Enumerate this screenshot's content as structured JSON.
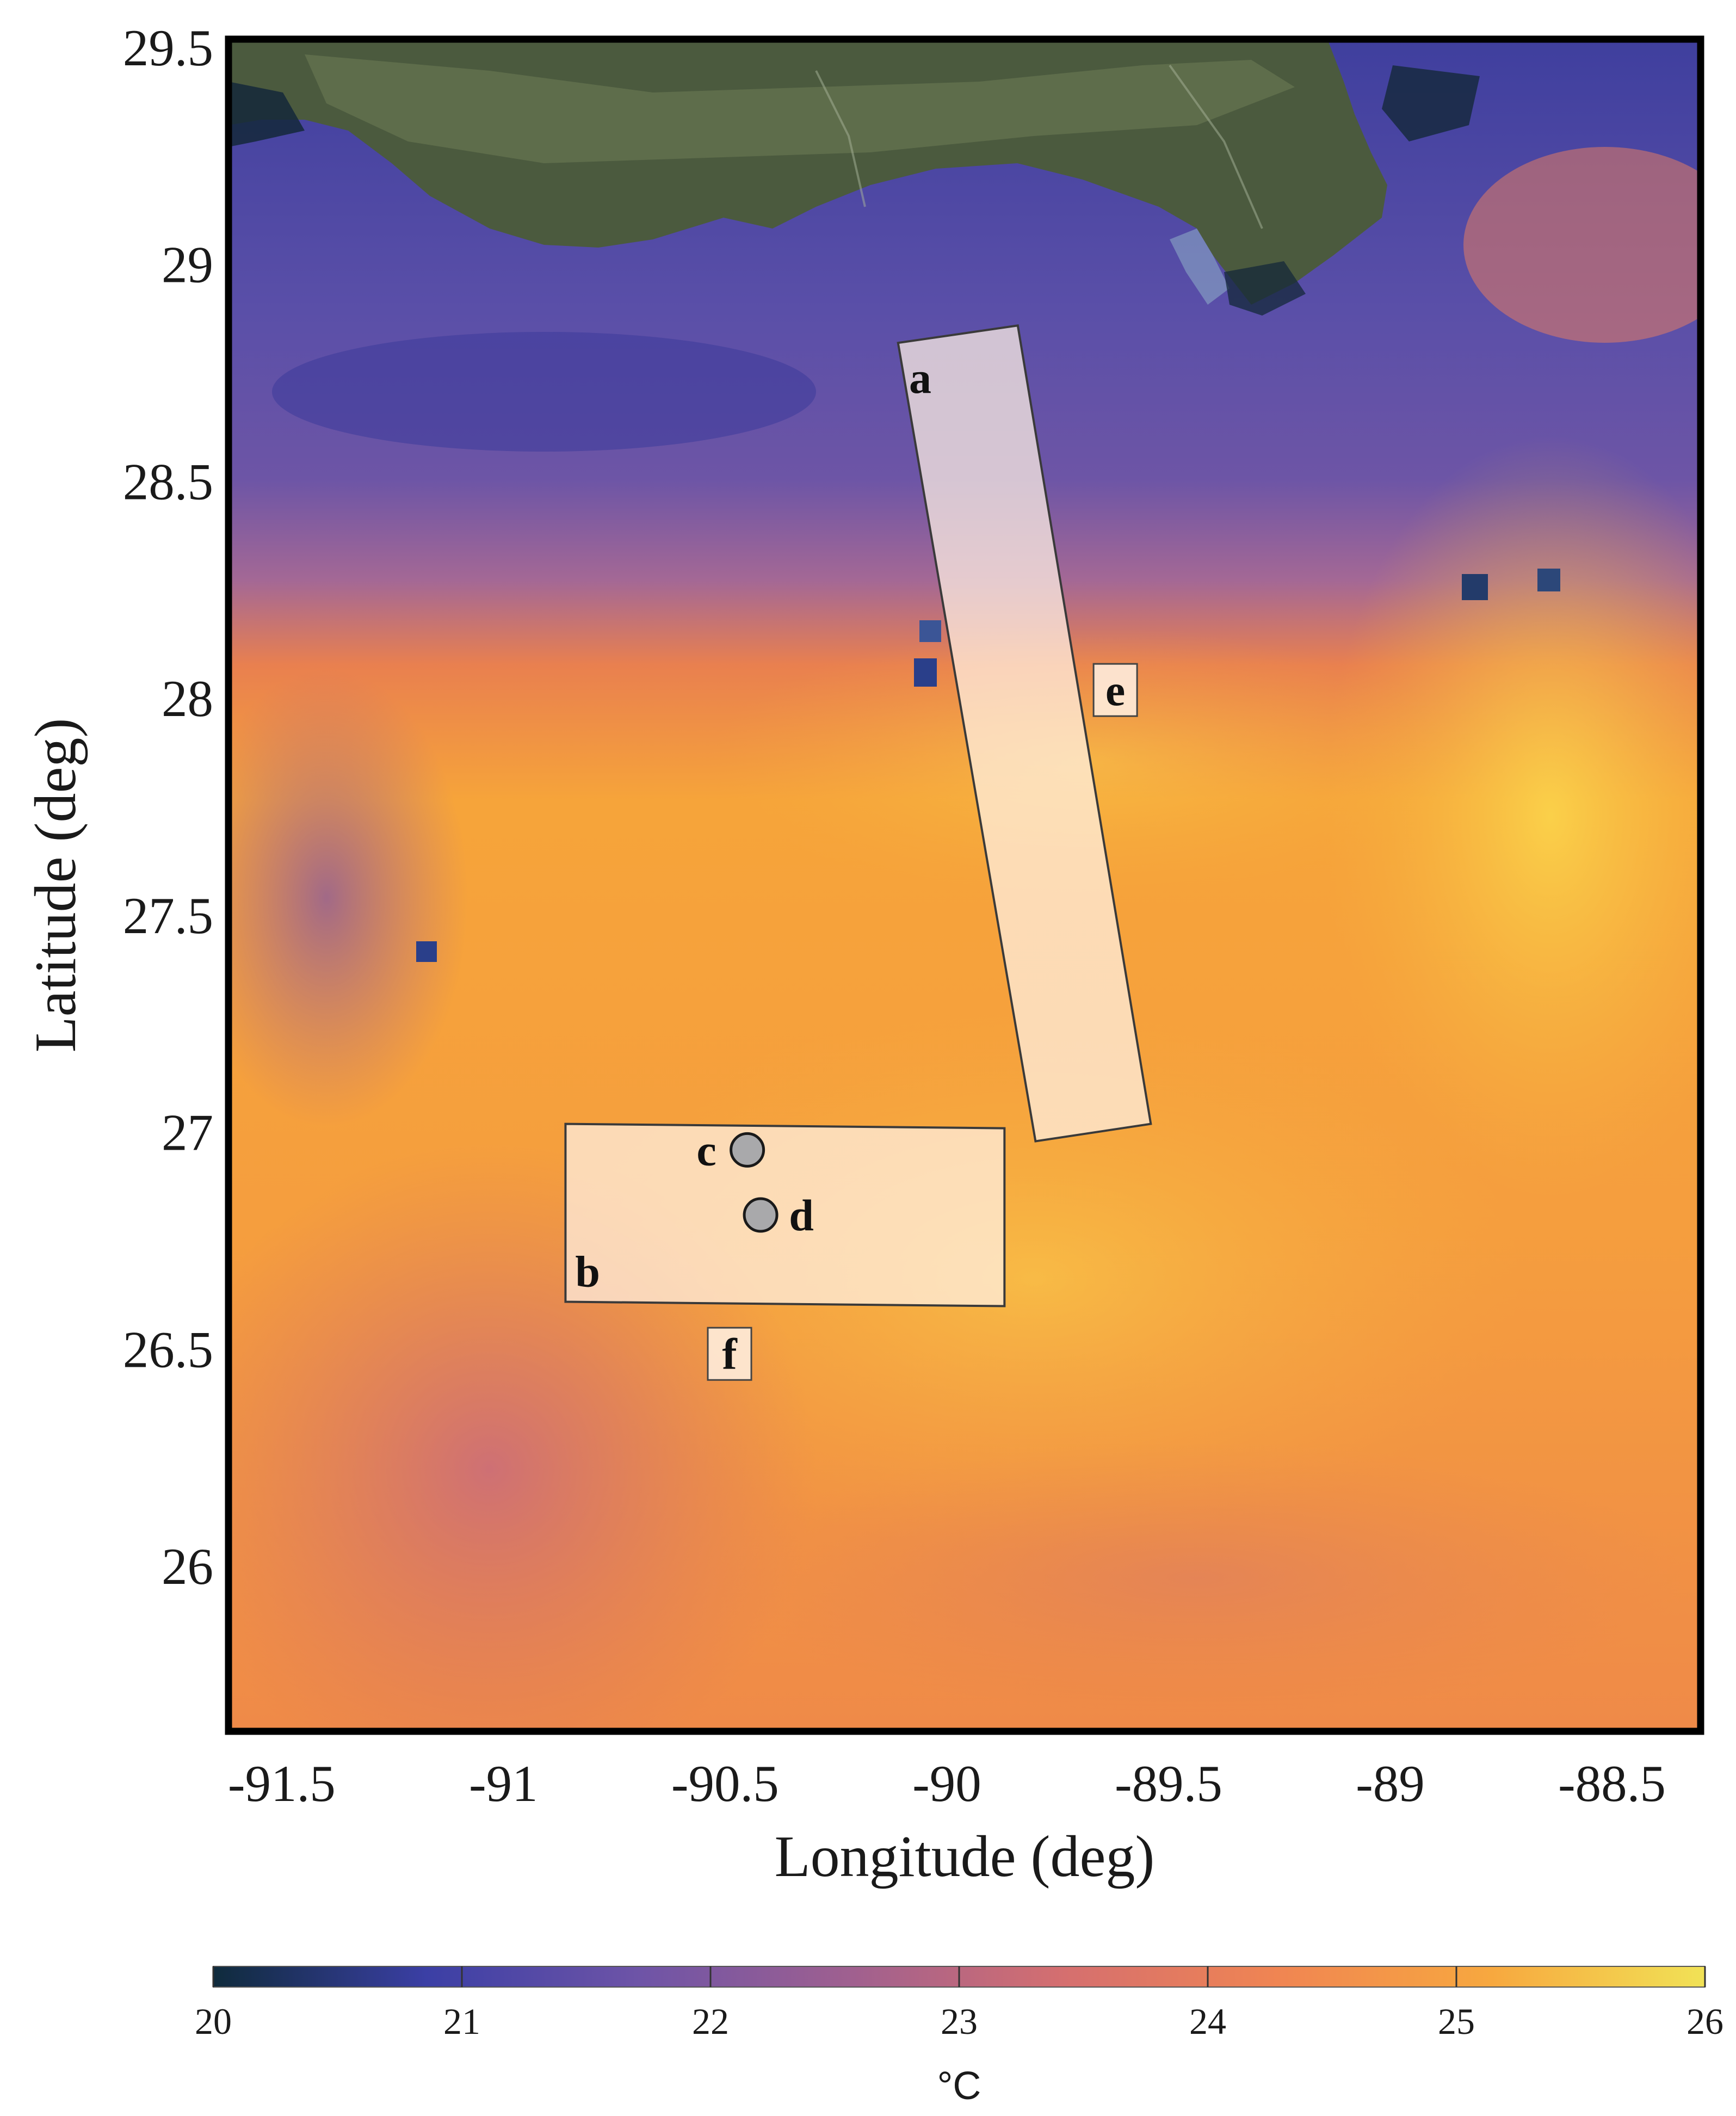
{
  "map": {
    "xaxis": {
      "label": "Longitude (deg)",
      "ticks": [
        {
          "value": -91.5,
          "label": "-91.5"
        },
        {
          "value": -91,
          "label": "-91"
        },
        {
          "value": -90.5,
          "label": "-90.5"
        },
        {
          "value": -90,
          "label": "-90"
        },
        {
          "value": -89.5,
          "label": "-89.5"
        },
        {
          "value": -89,
          "label": "-89"
        },
        {
          "value": -88.5,
          "label": "-88.5"
        }
      ],
      "range": [
        -91.62,
        -88.3
      ]
    },
    "yaxis": {
      "label": "Latitude (deg)",
      "ticks": [
        {
          "value": 29.5,
          "label": "29.5"
        },
        {
          "value": 29,
          "label": "29"
        },
        {
          "value": 28.5,
          "label": "28.5"
        },
        {
          "value": 28,
          "label": "28"
        },
        {
          "value": 27.5,
          "label": "27.5"
        },
        {
          "value": 27,
          "label": "27"
        },
        {
          "value": 26.5,
          "label": "26.5"
        },
        {
          "value": 26,
          "label": "26"
        }
      ],
      "range": [
        25.62,
        29.52
      ]
    },
    "layers": [
      "satellite basemap (land)",
      "sea surface temperature"
    ],
    "regions": [
      {
        "id": "a",
        "label": "a",
        "kind": "tilted transect box",
        "corners": [
          [
            -90.11,
            28.82
          ],
          [
            -89.84,
            28.86
          ],
          [
            -89.54,
            27.02
          ],
          [
            -89.8,
            26.98
          ]
        ]
      },
      {
        "id": "b",
        "label": "b",
        "kind": "rectangle",
        "corners": [
          [
            -90.86,
            27.02
          ],
          [
            -89.87,
            27.01
          ],
          [
            -89.87,
            26.6
          ],
          [
            -90.86,
            26.61
          ]
        ]
      }
    ],
    "points": [
      {
        "label": "c",
        "lon": -90.45,
        "lat": 26.96
      },
      {
        "label": "d",
        "lon": -90.42,
        "lat": 26.81
      }
    ],
    "boxed_labels": [
      {
        "label": "e",
        "lon": -89.62,
        "lat": 28.02
      },
      {
        "label": "f",
        "lon": -90.49,
        "lat": 26.49
      }
    ],
    "colors": {
      "frame": "#000000",
      "region_outline": "#3a3a3a",
      "region_fill": "#fff1e4"
    }
  },
  "colorbar": {
    "min": 20,
    "max": 26,
    "unit": "°C",
    "ticks": [
      "20",
      "21",
      "22",
      "23",
      "24",
      "25",
      "26"
    ],
    "colormap": [
      "#0f2b3c",
      "#3b3fa5",
      "#6e54a7",
      "#a0608f",
      "#d56f6f",
      "#f08552",
      "#f7a83f",
      "#f1e256"
    ]
  }
}
